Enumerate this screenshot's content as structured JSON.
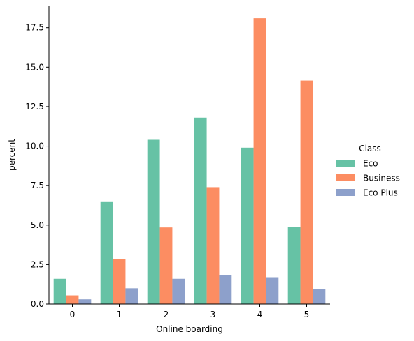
{
  "chart_data": {
    "type": "bar",
    "xlabel": "Online boarding",
    "ylabel": "percent",
    "categories": [
      "0",
      "1",
      "2",
      "3",
      "4",
      "5"
    ],
    "ylim": [
      0,
      18.9
    ],
    "yticks": [
      "0.0",
      "2.5",
      "5.0",
      "7.5",
      "10.0",
      "12.5",
      "15.0",
      "17.5"
    ],
    "legend": {
      "title": "Class",
      "placement": "right"
    },
    "grid": false,
    "series": [
      {
        "name": "Eco",
        "color": "#66c2a5",
        "values": [
          1.6,
          6.5,
          10.4,
          11.8,
          9.9,
          4.9
        ]
      },
      {
        "name": "Business",
        "color": "#fc8d62",
        "values": [
          0.55,
          2.85,
          4.85,
          7.4,
          18.1,
          14.15
        ]
      },
      {
        "name": "Eco Plus",
        "color": "#8da0cb",
        "values": [
          0.3,
          1.0,
          1.6,
          1.85,
          1.7,
          0.95
        ]
      }
    ]
  }
}
